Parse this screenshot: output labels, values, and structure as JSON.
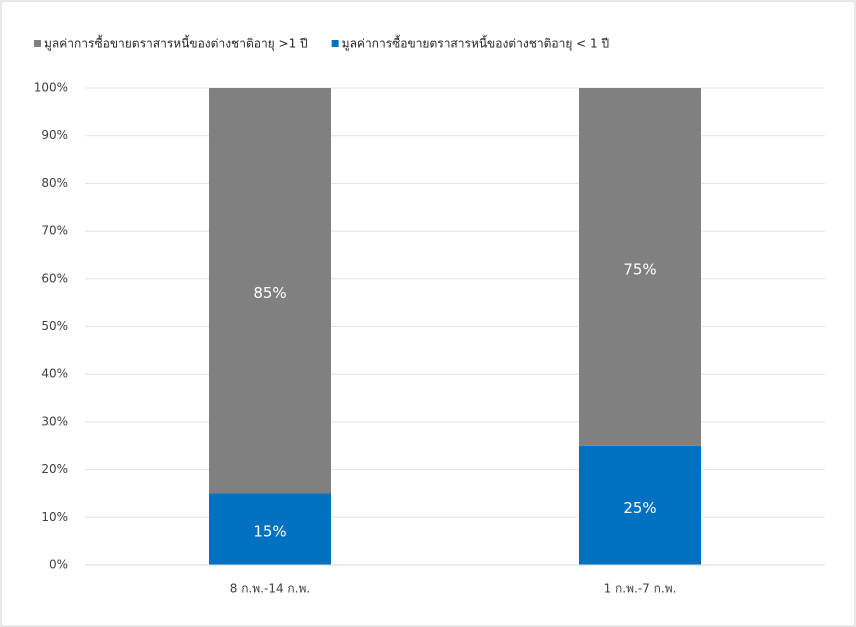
{
  "chart_data": {
    "type": "stacked_bar",
    "categories": [
      "8 ก.พ.-14 ก.พ.",
      "1 ก.พ.-7 ก.พ."
    ],
    "series": [
      {
        "name": "มูลค่าการซื้อขายตราสารหนี้ของต่างชาติอายุ < 1 ปี",
        "color": "#0070c0",
        "values": [
          15,
          25
        ],
        "value_labels": [
          "15%",
          "25%"
        ]
      },
      {
        "name": "มูลค่าการซื้อขายตราสารหนี้ของต่างชาติอายุ >1 ปี",
        "color": "#808080",
        "values": [
          85,
          75
        ],
        "value_labels": [
          "85%",
          "75%"
        ]
      }
    ],
    "ylim": [
      0,
      100
    ],
    "yticks": [
      {
        "value": 0,
        "label": "0%"
      },
      {
        "value": 10,
        "label": "10%"
      },
      {
        "value": 20,
        "label": "20%"
      },
      {
        "value": 30,
        "label": "30%"
      },
      {
        "value": 40,
        "label": "40%"
      },
      {
        "value": 50,
        "label": "50%"
      },
      {
        "value": 60,
        "label": "60%"
      },
      {
        "value": 70,
        "label": "70%"
      },
      {
        "value": 80,
        "label": "80%"
      },
      {
        "value": 90,
        "label": "90%"
      },
      {
        "value": 100,
        "label": "100%"
      }
    ],
    "grid": true,
    "legend": "top"
  }
}
